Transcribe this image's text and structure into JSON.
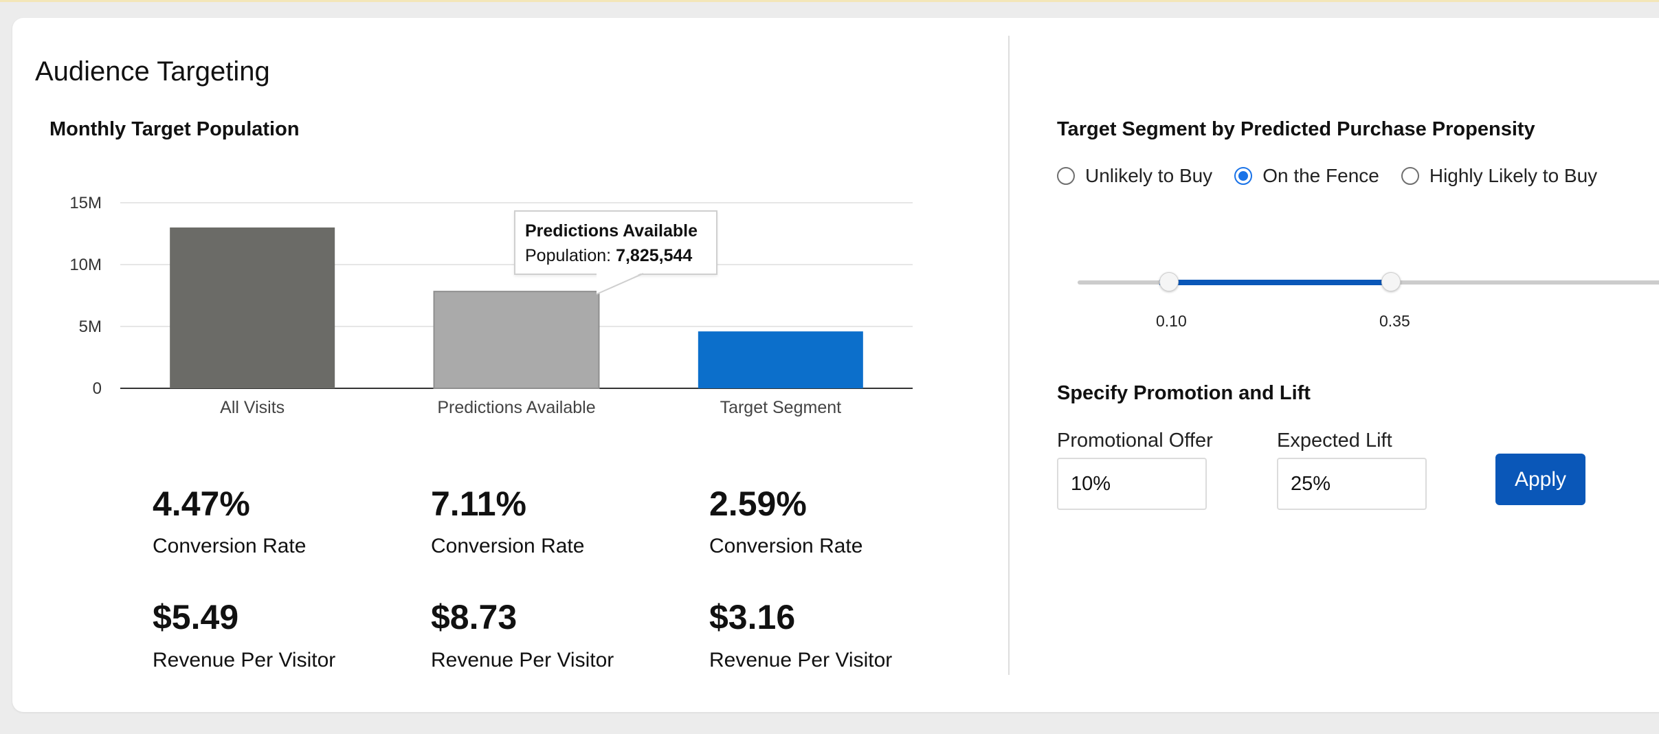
{
  "title": "Audience Targeting",
  "chart_section_title": "Monthly Target Population",
  "chart_data": {
    "type": "bar",
    "categories": [
      "All Visits",
      "Predictions Available",
      "Target Segment"
    ],
    "values": [
      13000000,
      7825544,
      4600000
    ],
    "ylim": [
      0,
      15000000
    ],
    "yticks": [
      {
        "value": 0,
        "label": "0"
      },
      {
        "value": 5000000,
        "label": "5M"
      },
      {
        "value": 10000000,
        "label": "10M"
      },
      {
        "value": 15000000,
        "label": "15M"
      }
    ],
    "colors": [
      "#6b6b67",
      "#aaaaaa",
      "#0c6fcb"
    ],
    "grid": true,
    "tooltip": {
      "title": "Predictions Available",
      "label": "Population:",
      "value": "7,825,544"
    }
  },
  "stats": [
    {
      "conversion_rate": "4.47%",
      "conversion_label": "Conversion Rate",
      "rpv": "$5.49",
      "rpv_label": "Revenue Per Visitor"
    },
    {
      "conversion_rate": "7.11%",
      "conversion_label": "Conversion Rate",
      "rpv": "$8.73",
      "rpv_label": "Revenue Per Visitor"
    },
    {
      "conversion_rate": "2.59%",
      "conversion_label": "Conversion Rate",
      "rpv": "$3.16",
      "rpv_label": "Revenue Per Visitor"
    }
  ],
  "segment": {
    "title": "Target Segment by Predicted Purchase Propensity",
    "options": [
      {
        "label": "Unlikely to Buy",
        "checked": false
      },
      {
        "label": "On the Fence",
        "checked": true
      },
      {
        "label": "Highly Likely to Buy",
        "checked": false
      }
    ],
    "slider": {
      "low": "0.10",
      "high": "0.35",
      "accent": "#0a57b8"
    }
  },
  "promotion": {
    "title": "Specify Promotion and Lift",
    "offer_label": "Promotional Offer",
    "offer_value": "10%",
    "lift_label": "Expected Lift",
    "lift_value": "25%",
    "apply_label": "Apply",
    "accent": "#0a57b8"
  }
}
